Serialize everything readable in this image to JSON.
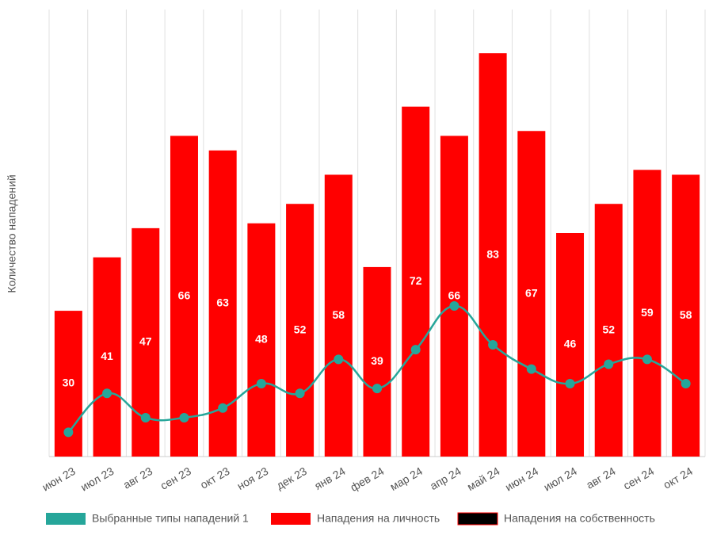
{
  "chart_data": {
    "type": "bar",
    "y_label": "Количество нападений",
    "categories": [
      "июн 23",
      "июл 23",
      "авг 23",
      "сен 23",
      "окт 23",
      "ноя 23",
      "дек 23",
      "янв 24",
      "фев 24",
      "мар 24",
      "апр 24",
      "май 24",
      "июн 24",
      "июл 24",
      "авг 24",
      "сен 24",
      "окт 24"
    ],
    "series": [
      {
        "name": "Выбранные типы нападений 1",
        "color": "#26a69a",
        "type": "line",
        "values": [
          5,
          13,
          8,
          8,
          10,
          15,
          13,
          20,
          14,
          22,
          31,
          23,
          18,
          15,
          19,
          20,
          15
        ]
      },
      {
        "name": "Нападения на личность",
        "color": "#ff0000",
        "type": "bar",
        "values": [
          30,
          41,
          47,
          66,
          63,
          48,
          52,
          58,
          39,
          72,
          66,
          83,
          67,
          46,
          52,
          59,
          58
        ]
      },
      {
        "name": "Нападения на собственность",
        "color": "#000000",
        "type": "bar"
      }
    ],
    "ylim": [
      0,
      92
    ],
    "grid": true,
    "legend": "bottom"
  }
}
